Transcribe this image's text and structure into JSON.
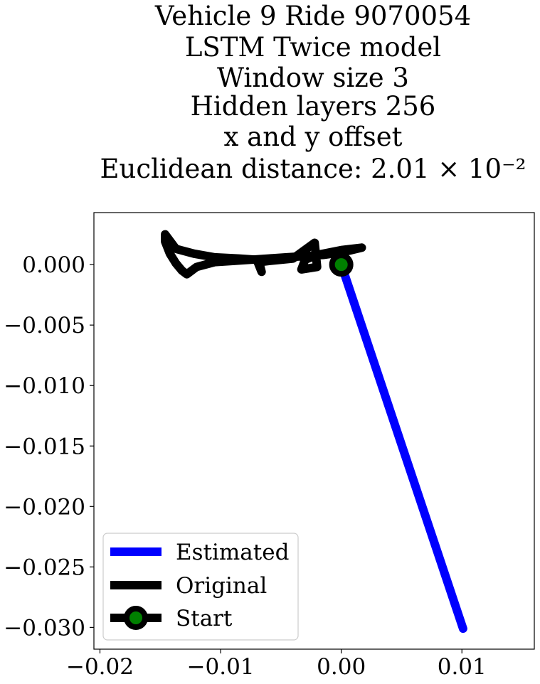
{
  "chart_data": {
    "type": "line",
    "title_lines": [
      "Vehicle 9 Ride 9070054",
      "LSTM Twice model",
      "Window size 3",
      "Hidden layers 256",
      "x and y offset",
      "Euclidean distance: 2.01 × 10⁻²"
    ],
    "xlabel": "",
    "ylabel": "",
    "xlim": [
      -0.0205,
      0.016
    ],
    "ylim": [
      -0.0318,
      0.0043
    ],
    "x_ticks": [
      -0.02,
      -0.01,
      0.0,
      0.01
    ],
    "x_tick_labels": [
      "−0.02",
      "−0.01",
      "0.00",
      "0.01"
    ],
    "y_ticks": [
      0.0,
      -0.005,
      -0.01,
      -0.015,
      -0.02,
      -0.025,
      -0.03
    ],
    "y_tick_labels": [
      "0.000",
      "−0.005",
      "−0.010",
      "−0.015",
      "−0.020",
      "−0.025",
      "−0.030"
    ],
    "grid": false,
    "legend_position": "lower-left",
    "series": [
      {
        "name": "Estimated",
        "color": "#0000ff",
        "x": [
          0.0,
          0.0101
        ],
        "y": [
          0.0,
          -0.0301
        ]
      },
      {
        "name": "Original",
        "color": "#000000",
        "x": [
          0.0017,
          0.0,
          -0.002,
          -0.003,
          -0.0033,
          -0.002,
          -0.0022,
          -0.004,
          -0.006,
          -0.0068,
          -0.0066,
          -0.007,
          -0.0085,
          -0.0105,
          -0.0122,
          -0.0137,
          -0.0146,
          -0.0146,
          -0.0142,
          -0.0137,
          -0.0132,
          -0.0128,
          -0.012,
          -0.0105,
          -0.009,
          -0.0075,
          -0.006,
          -0.0045,
          -0.003,
          -0.0015,
          0.0,
          0.0017
        ],
        "y": [
          0.0014,
          0.0012,
          0.0008,
          0.0004,
          -0.0004,
          -0.0002,
          0.0018,
          0.0005,
          0.0003,
          0.0002,
          -0.0006,
          0.0004,
          0.0005,
          0.0006,
          0.0009,
          0.0013,
          0.0025,
          0.0019,
          0.0009,
          0.0001,
          -0.0005,
          -0.0008,
          -0.0002,
          0.0002,
          0.0003,
          0.0004,
          0.0005,
          0.0006,
          0.0007,
          0.0008,
          0.001,
          0.0014
        ]
      },
      {
        "name": "Start",
        "color": "#000000",
        "marker_face": "#008000",
        "x": [
          0.0
        ],
        "y": [
          0.0
        ]
      }
    ]
  }
}
